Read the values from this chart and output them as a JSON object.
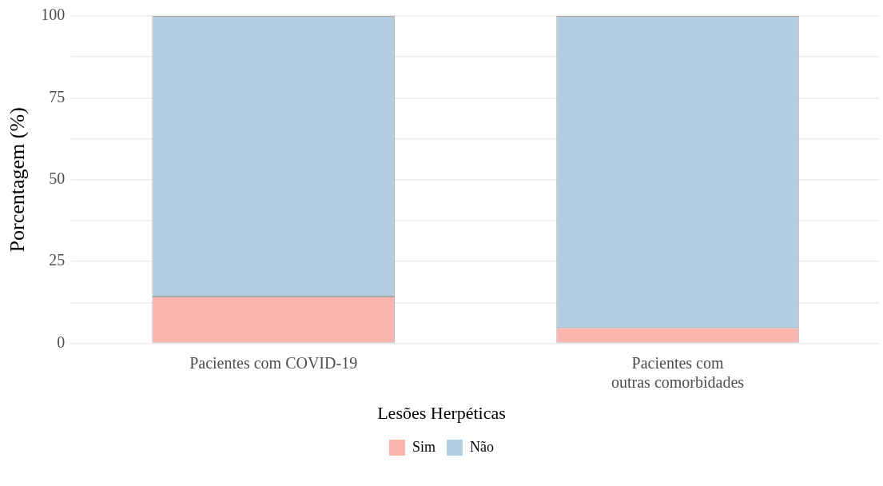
{
  "chart_data": {
    "type": "bar",
    "stacked": true,
    "ylabel": "Porcentagem (%)",
    "legend_title": "Lesões Herpéticas",
    "legend": "bottom",
    "grid": "y",
    "categories": [
      "Pacientes com COVID-19",
      "Pacientes com outras comorbidades"
    ],
    "series": [
      {
        "name": "Sim",
        "color": "#fbb4ae",
        "values": [
          14.3,
          4.7
        ]
      },
      {
        "name": "Não",
        "color": "#b3cde3",
        "values": [
          85.7,
          95.3
        ]
      }
    ],
    "ylim": [
      0,
      100
    ],
    "yticks": [
      0,
      {
        "value": 12.5,
        "label": null
      },
      25,
      {
        "value": 37.5,
        "label": null
      },
      50,
      {
        "value": 62.5,
        "label": null
      },
      75,
      {
        "value": 87.5,
        "label": null
      },
      100
    ]
  }
}
